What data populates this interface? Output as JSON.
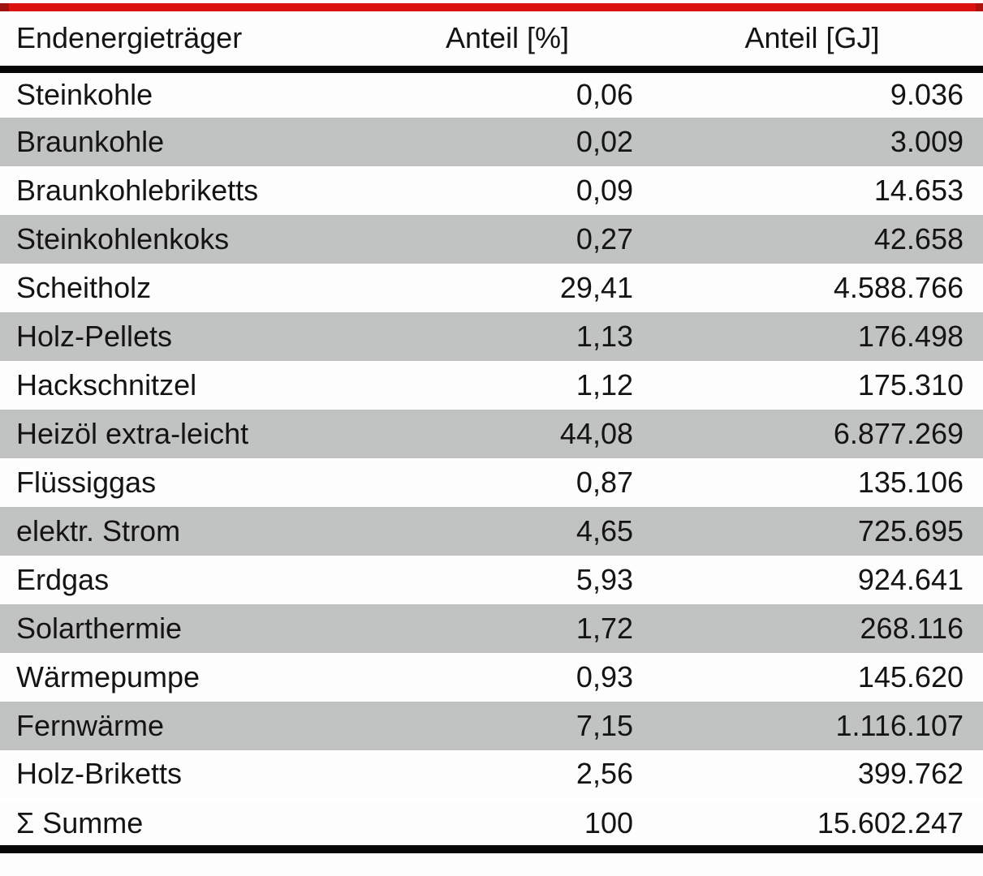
{
  "chart_data": {
    "type": "table",
    "title": "",
    "columns": [
      "Endenergieträger",
      "Anteil [%]",
      "Anteil [GJ]"
    ],
    "categories": [
      "Steinkohle",
      "Braunkohle",
      "Braunkohlebriketts",
      "Steinkohlenkoks",
      "Scheitholz",
      "Holz-Pellets",
      "Hackschnitzel",
      "Heizöl extra-leicht",
      "Flüssiggas",
      "elektr. Strom",
      "Erdgas",
      "Solarthermie",
      "Wärmepumpe",
      "Fernwärme",
      "Holz-Briketts"
    ],
    "series": [
      {
        "name": "Anteil [%]",
        "values": [
          0.06,
          0.02,
          0.09,
          0.27,
          29.41,
          1.13,
          1.12,
          44.08,
          0.87,
          4.65,
          5.93,
          1.72,
          0.93,
          7.15,
          2.56
        ]
      },
      {
        "name": "Anteil [GJ]",
        "values": [
          9036,
          3009,
          14653,
          42658,
          4588766,
          176498,
          175310,
          6877269,
          135106,
          725695,
          924641,
          268116,
          145620,
          1116107,
          399762
        ]
      }
    ],
    "total": {
      "label": "Σ Summe",
      "percent": 100,
      "gj": 15602247
    },
    "number_format": "German (comma decimal, dot thousands separator)",
    "layout": {
      "alternating_row_shading": "odd data rows shaded gray",
      "accent_bar_top": true
    }
  },
  "table": {
    "columns": [
      "Endenergieträger",
      "Anteil [%]",
      "Anteil [GJ]"
    ],
    "rows": [
      {
        "label": "Steinkohle",
        "percent": "0,06",
        "gj": "9.036"
      },
      {
        "label": "Braunkohle",
        "percent": "0,02",
        "gj": "3.009"
      },
      {
        "label": "Braunkohlebriketts",
        "percent": "0,09",
        "gj": "14.653"
      },
      {
        "label": "Steinkohlenkoks",
        "percent": "0,27",
        "gj": "42.658"
      },
      {
        "label": "Scheitholz",
        "percent": "29,41",
        "gj": "4.588.766"
      },
      {
        "label": "Holz-Pellets",
        "percent": "1,13",
        "gj": "176.498"
      },
      {
        "label": "Hackschnitzel",
        "percent": "1,12",
        "gj": "175.310"
      },
      {
        "label": "Heizöl extra-leicht",
        "percent": "44,08",
        "gj": "6.877.269"
      },
      {
        "label": "Flüssiggas",
        "percent": "0,87",
        "gj": "135.106"
      },
      {
        "label": "elektr. Strom",
        "percent": "4,65",
        "gj": "725.695"
      },
      {
        "label": "Erdgas",
        "percent": "5,93",
        "gj": "924.641"
      },
      {
        "label": "Solarthermie",
        "percent": "1,72",
        "gj": "268.116"
      },
      {
        "label": "Wärmepumpe",
        "percent": "0,93",
        "gj": "145.620"
      },
      {
        "label": "Fernwärme",
        "percent": "7,15",
        "gj": "1.116.107"
      },
      {
        "label": "Holz-Briketts",
        "percent": "2,56",
        "gj": "399.762"
      }
    ],
    "total": {
      "label": "Σ Summe",
      "percent": "100",
      "gj": "15.602.247"
    }
  },
  "colors": {
    "accent-red": "#dc1210",
    "accent-red-dark": "#9e1310",
    "row-alt-gray": "#c1c2c2",
    "rule-black": "#070707",
    "text-color": "#141414"
  }
}
